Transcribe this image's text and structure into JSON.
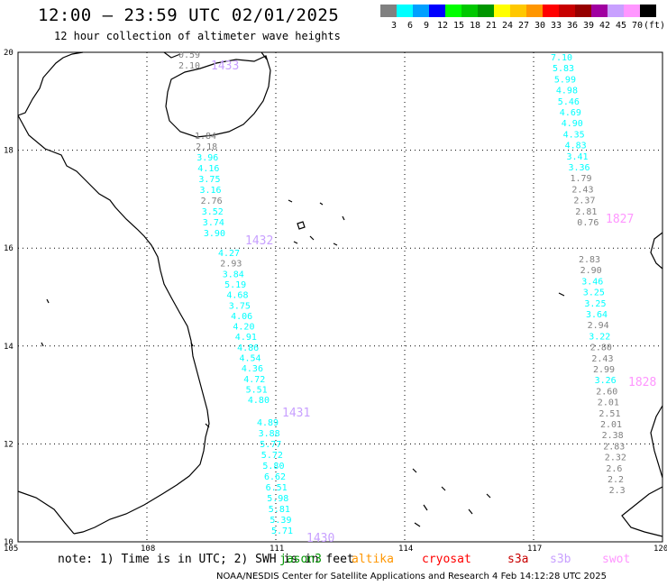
{
  "title": "12:00 – 23:59 UTC 02/01/2025",
  "subtitle": "12 hour collection of altimeter wave heights",
  "color_scale": {
    "unit": "(ft)",
    "items": [
      {
        "label": "3",
        "color": "#808080"
      },
      {
        "label": "6",
        "color": "#00ffff"
      },
      {
        "label": "9",
        "color": "#00a0ff"
      },
      {
        "label": "12",
        "color": "#0000ff"
      },
      {
        "label": "15",
        "color": "#00ff00"
      },
      {
        "label": "18",
        "color": "#00c800"
      },
      {
        "label": "21",
        "color": "#009600"
      },
      {
        "label": "24",
        "color": "#ffff00"
      },
      {
        "label": "27",
        "color": "#ffc800"
      },
      {
        "label": "30",
        "color": "#ff9600"
      },
      {
        "label": "33",
        "color": "#ff0000"
      },
      {
        "label": "36",
        "color": "#c80000"
      },
      {
        "label": "39",
        "color": "#960000"
      },
      {
        "label": "42",
        "color": "#a000a0"
      },
      {
        "label": "45",
        "color": "#c8a0ff"
      },
      {
        "label": "70",
        "color": "#ff96ff"
      },
      {
        "label": "",
        "color": "#000000"
      }
    ]
  },
  "axes": {
    "lon_ticks": [
      "105",
      "108",
      "111",
      "114",
      "117",
      "120"
    ],
    "lat_ticks": [
      "20",
      "18",
      "16",
      "14",
      "12",
      "10"
    ]
  },
  "tracks": [
    {
      "time": "1433",
      "time_color": "#c8a0ff",
      "points": [
        {
          "v": "0.59",
          "c": "#808080"
        },
        {
          "v": "2.10",
          "c": "#808080"
        }
      ]
    },
    {
      "time": "",
      "time_color": "",
      "points": [
        {
          "v": "1.84",
          "c": "#808080"
        },
        {
          "v": "2.18",
          "c": "#808080"
        },
        {
          "v": "3.96",
          "c": "#00ffff"
        },
        {
          "v": "4.16",
          "c": "#00ffff"
        },
        {
          "v": "3.75",
          "c": "#00ffff"
        },
        {
          "v": "3.16",
          "c": "#00ffff"
        },
        {
          "v": "2.76",
          "c": "#808080"
        },
        {
          "v": "3.52",
          "c": "#00ffff"
        },
        {
          "v": "3.74",
          "c": "#00ffff"
        },
        {
          "v": "3.90",
          "c": "#00ffff"
        }
      ]
    },
    {
      "time": "1432",
      "time_color": "#c8a0ff",
      "points": [
        {
          "v": "4.27",
          "c": "#00ffff"
        },
        {
          "v": "2.93",
          "c": "#808080"
        },
        {
          "v": "3.84",
          "c": "#00ffff"
        },
        {
          "v": "5.19",
          "c": "#00ffff"
        },
        {
          "v": "4.68",
          "c": "#00ffff"
        },
        {
          "v": "3.75",
          "c": "#00ffff"
        },
        {
          "v": "4.06",
          "c": "#00ffff"
        },
        {
          "v": "4.20",
          "c": "#00ffff"
        },
        {
          "v": "4.91",
          "c": "#00ffff"
        },
        {
          "v": "4.86",
          "c": "#00ffff"
        },
        {
          "v": "4.54",
          "c": "#00ffff"
        },
        {
          "v": "4.36",
          "c": "#00ffff"
        },
        {
          "v": "4.72",
          "c": "#00ffff"
        },
        {
          "v": "5.51",
          "c": "#00ffff"
        },
        {
          "v": "4.80",
          "c": "#00ffff"
        }
      ]
    },
    {
      "time": "1431",
      "time_color": "#c8a0ff",
      "points": [
        {
          "v": "4.89",
          "c": "#00ffff"
        },
        {
          "v": "3.88",
          "c": "#00ffff"
        },
        {
          "v": "5.77",
          "c": "#00ffff"
        },
        {
          "v": "5.72",
          "c": "#00ffff"
        },
        {
          "v": "5.80",
          "c": "#00ffff"
        },
        {
          "v": "6.62",
          "c": "#00ffff"
        },
        {
          "v": "6.51",
          "c": "#00ffff"
        },
        {
          "v": "5.98",
          "c": "#00ffff"
        },
        {
          "v": "5.81",
          "c": "#00ffff"
        },
        {
          "v": "5.39",
          "c": "#00ffff"
        },
        {
          "v": "5.71",
          "c": "#00ffff"
        }
      ]
    },
    {
      "time": "1430",
      "time_color": "#c8a0ff",
      "points": []
    },
    {
      "time": "1827",
      "time_color": "#ff96ff",
      "points": [
        {
          "v": "7.10",
          "c": "#00ffff"
        },
        {
          "v": "5.83",
          "c": "#00ffff"
        },
        {
          "v": "5.99",
          "c": "#00ffff"
        },
        {
          "v": "4.98",
          "c": "#00ffff"
        },
        {
          "v": "5.46",
          "c": "#00ffff"
        },
        {
          "v": "4.69",
          "c": "#00ffff"
        },
        {
          "v": "4.90",
          "c": "#00ffff"
        },
        {
          "v": "4.35",
          "c": "#00ffff"
        },
        {
          "v": "4.83",
          "c": "#00ffff"
        },
        {
          "v": "3.41",
          "c": "#00ffff"
        },
        {
          "v": "3.36",
          "c": "#00ffff"
        },
        {
          "v": "1.79",
          "c": "#808080"
        },
        {
          "v": "2.43",
          "c": "#808080"
        },
        {
          "v": "2.37",
          "c": "#808080"
        },
        {
          "v": "2.81",
          "c": "#808080"
        },
        {
          "v": "0.76",
          "c": "#808080"
        }
      ]
    },
    {
      "time": "1828",
      "time_color": "#ff96ff",
      "points": [
        {
          "v": "2.83",
          "c": "#808080"
        },
        {
          "v": "2.90",
          "c": "#808080"
        },
        {
          "v": "3.46",
          "c": "#00ffff"
        },
        {
          "v": "3.25",
          "c": "#00ffff"
        },
        {
          "v": "3.25",
          "c": "#00ffff"
        },
        {
          "v": "3.64",
          "c": "#00ffff"
        },
        {
          "v": "2.94",
          "c": "#808080"
        },
        {
          "v": "3.22",
          "c": "#00ffff"
        },
        {
          "v": "2.80",
          "c": "#808080"
        },
        {
          "v": "2.43",
          "c": "#808080"
        },
        {
          "v": "2.99",
          "c": "#808080"
        },
        {
          "v": "3.26",
          "c": "#00ffff"
        },
        {
          "v": "2.60",
          "c": "#808080"
        },
        {
          "v": "2.01",
          "c": "#808080"
        },
        {
          "v": "2.51",
          "c": "#808080"
        },
        {
          "v": "2.01",
          "c": "#808080"
        },
        {
          "v": "2.38",
          "c": "#808080"
        },
        {
          "v": "2.83",
          "c": "#808080"
        },
        {
          "v": "2.32",
          "c": "#808080"
        },
        {
          "v": "2.6",
          "c": "#808080"
        },
        {
          "v": "2.2",
          "c": "#808080"
        },
        {
          "v": "2.3",
          "c": "#808080"
        }
      ]
    }
  ],
  "note": "note: 1) Time is in UTC; 2) SWH is in feet",
  "satellites": [
    {
      "name": "jason3",
      "color": "#009600"
    },
    {
      "name": "altika",
      "color": "#ff9600"
    },
    {
      "name": "cryosat",
      "color": "#ff0000"
    },
    {
      "name": "s3a",
      "color": "#c80000"
    },
    {
      "name": "s3b",
      "color": "#c8a0ff"
    },
    {
      "name": "swot",
      "color": "#ff96ff"
    }
  ],
  "credit": "NOAA/NESDIS Center for Satellite Applications and Research     4 Feb 14:12:28 UTC 2025"
}
